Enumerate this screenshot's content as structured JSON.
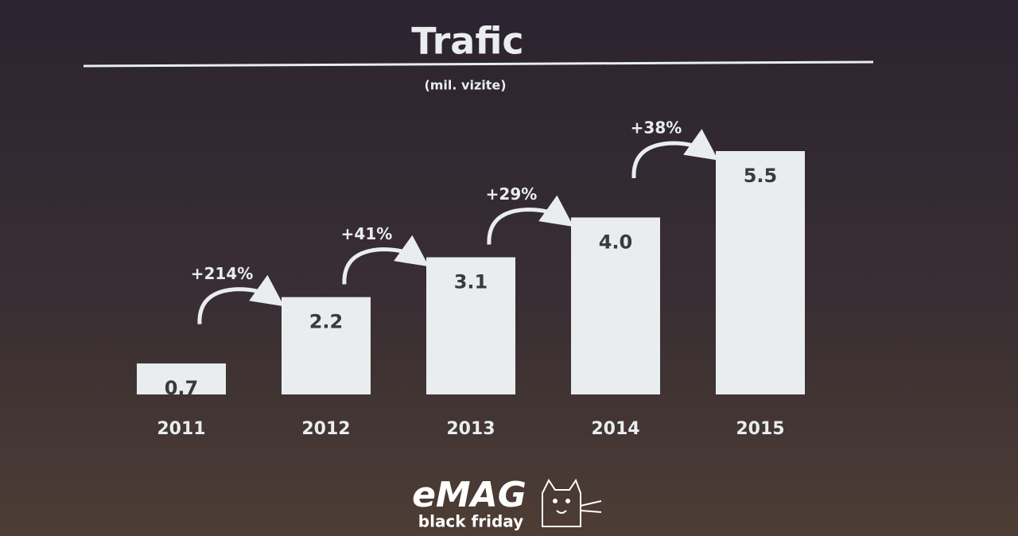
{
  "chart_data": {
    "type": "bar",
    "title": "Trafic",
    "subtitle": "(mil. vizite)",
    "categories": [
      "2011",
      "2012",
      "2013",
      "2014",
      "2015"
    ],
    "values": [
      0.7,
      2.2,
      3.1,
      4.0,
      5.5
    ],
    "value_labels": [
      "0.7",
      "2.2",
      "3.1",
      "4.0",
      "5.5"
    ],
    "color": "#e9edf0",
    "annotations": [
      "+214%",
      "+41%",
      "+29%",
      "+38%"
    ],
    "logo": {
      "name": "eMAG",
      "tagline": "black friday"
    }
  }
}
